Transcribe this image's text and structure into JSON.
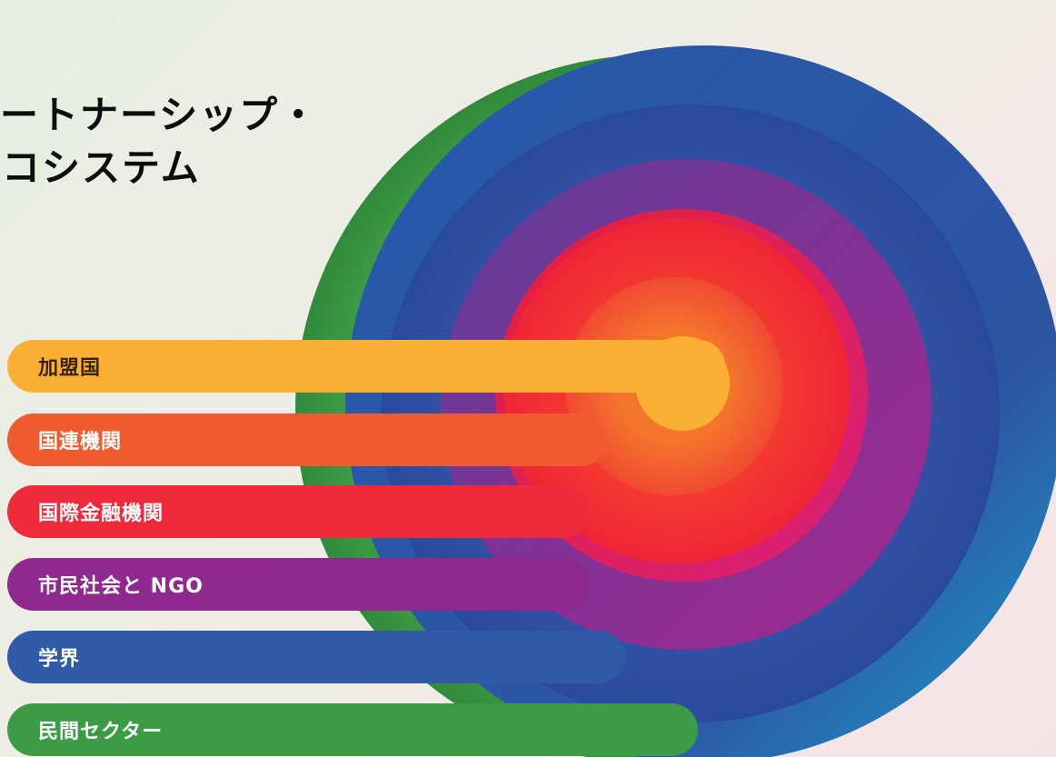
{
  "title": {
    "line1": "ートナーシップ・",
    "line2": "コシステム"
  },
  "categories": [
    {
      "label": "加盟国",
      "color": "#fbb034"
    },
    {
      "label": "国連機関",
      "color": "#f15b30"
    },
    {
      "label": "国際金融機関",
      "color": "#ee2a3c"
    },
    {
      "label": "市民社会と NGO",
      "color": "#8e2a8f"
    },
    {
      "label": "学界",
      "color": "#2e5aa8"
    },
    {
      "label": "民間セクター",
      "color": "#3c9b45"
    }
  ]
}
